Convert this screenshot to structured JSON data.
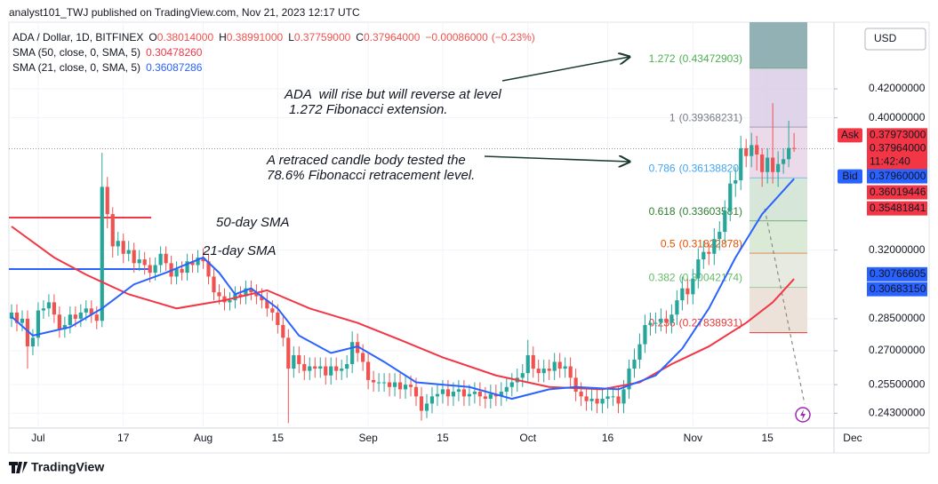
{
  "header": {
    "publisher": "analyst101_TWJ published on TradingView.com, Nov 21, 2023 12:17 UTC"
  },
  "footer": {
    "brand": "TradingView"
  },
  "chart_data": {
    "type": "candlestick",
    "symbol": "ADA / Dollar, 1D, BITFINEX",
    "currency": "USD",
    "ohlc_summary": [
      {
        "key": "O",
        "value": 0.38014,
        "label": "0.38014000"
      },
      {
        "key": "H",
        "value": 0.38991,
        "label": "0.38991000"
      },
      {
        "key": "L",
        "value": 0.37759,
        "label": "0.37759000"
      },
      {
        "key": "C",
        "value": 0.37964,
        "label": "0.37964000"
      }
    ],
    "change": {
      "value": -0.00086,
      "label": "−0.00086000"
    },
    "change_pct": {
      "value": -0.23,
      "label": "(−0.23%)"
    },
    "up_color": "#26a69a",
    "down_color": "#ef5350",
    "log_scale": true,
    "grid": true,
    "xlim": [
      -0.5,
      154.5
    ],
    "xticks": [
      {
        "value": 5,
        "label": "Jul"
      },
      {
        "value": 21,
        "label": "17"
      },
      {
        "value": 36,
        "label": "Aug"
      },
      {
        "value": 50,
        "label": "15"
      },
      {
        "value": 67,
        "label": "Sep"
      },
      {
        "value": 81,
        "label": "15"
      },
      {
        "value": 97,
        "label": "Oct"
      },
      {
        "value": 112,
        "label": "16"
      },
      {
        "value": 128,
        "label": "Nov"
      },
      {
        "value": 142,
        "label": "15"
      },
      {
        "value": 158,
        "label": "Dec"
      }
    ],
    "ylim": [
      0.237,
      0.47
    ],
    "yticks": [
      {
        "value": 0.42,
        "label": "0.42000000"
      },
      {
        "value": 0.4,
        "label": "0.40000000"
      },
      {
        "value": 0.32,
        "label": "0.32000000"
      },
      {
        "value": 0.285,
        "label": "0.28500000"
      },
      {
        "value": 0.27,
        "label": "0.27000000"
      },
      {
        "value": 0.255,
        "label": "0.25500000"
      },
      {
        "value": 0.243,
        "label": "0.24300000"
      }
    ],
    "x": [
      0,
      1,
      2,
      3,
      4,
      5,
      6,
      7,
      8,
      9,
      10,
      11,
      12,
      13,
      14,
      15,
      16,
      17,
      18,
      19,
      20,
      21,
      22,
      23,
      24,
      25,
      26,
      27,
      28,
      29,
      30,
      31,
      32,
      33,
      34,
      35,
      36,
      37,
      38,
      39,
      40,
      41,
      42,
      43,
      44,
      45,
      46,
      47,
      48,
      49,
      50,
      51,
      52,
      53,
      54,
      55,
      56,
      57,
      58,
      59,
      60,
      61,
      62,
      63,
      64,
      65,
      66,
      67,
      68,
      69,
      70,
      71,
      72,
      73,
      74,
      75,
      76,
      77,
      78,
      79,
      80,
      81,
      82,
      83,
      84,
      85,
      86,
      87,
      88,
      89,
      90,
      91,
      92,
      93,
      94,
      95,
      96,
      97,
      98,
      99,
      100,
      101,
      102,
      103,
      104,
      105,
      106,
      107,
      108,
      109,
      110,
      111,
      112,
      113,
      114,
      115,
      116,
      117,
      118,
      119,
      120,
      121,
      122,
      123,
      124,
      125,
      126,
      127,
      128,
      129,
      130,
      131,
      132,
      133,
      134,
      135,
      136,
      137,
      138,
      139,
      140,
      141,
      142,
      143,
      144,
      145,
      146,
      147
    ],
    "open": [
      0.285,
      0.288,
      0.283,
      0.285,
      0.272,
      0.276,
      0.289,
      0.29,
      0.293,
      0.287,
      0.28,
      0.282,
      0.287,
      0.285,
      0.288,
      0.29,
      0.287,
      0.284,
      0.356,
      0.34,
      0.322,
      0.325,
      0.318,
      0.32,
      0.313,
      0.315,
      0.312,
      0.308,
      0.312,
      0.318,
      0.313,
      0.306,
      0.31,
      0.308,
      0.314,
      0.312,
      0.316,
      0.314,
      0.306,
      0.298,
      0.296,
      0.293,
      0.294,
      0.297,
      0.296,
      0.3,
      0.298,
      0.296,
      0.294,
      0.29,
      0.288,
      0.282,
      0.276,
      0.262,
      0.268,
      0.264,
      0.261,
      0.263,
      0.262,
      0.263,
      0.259,
      0.263,
      0.261,
      0.262,
      0.264,
      0.274,
      0.269,
      0.265,
      0.257,
      0.256,
      0.256,
      0.256,
      0.254,
      0.256,
      0.253,
      0.255,
      0.254,
      0.25,
      0.244,
      0.247,
      0.25,
      0.251,
      0.253,
      0.25,
      0.252,
      0.253,
      0.25,
      0.251,
      0.252,
      0.25,
      0.249,
      0.251,
      0.25,
      0.252,
      0.254,
      0.256,
      0.258,
      0.26,
      0.268,
      0.262,
      0.26,
      0.262,
      0.261,
      0.265,
      0.262,
      0.263,
      0.258,
      0.252,
      0.25,
      0.248,
      0.249,
      0.247,
      0.249,
      0.25,
      0.25,
      0.247,
      0.253,
      0.262,
      0.266,
      0.273,
      0.282,
      0.283,
      0.283,
      0.285,
      0.283,
      0.287,
      0.294,
      0.3,
      0.297,
      0.305,
      0.315,
      0.319,
      0.318,
      0.326,
      0.33,
      0.342,
      0.358,
      0.36,
      0.38,
      0.375,
      0.382,
      0.376,
      0.365,
      0.374,
      0.365,
      0.37,
      0.373,
      0.38014
    ],
    "high": [
      0.292,
      0.292,
      0.289,
      0.289,
      0.28,
      0.293,
      0.294,
      0.297,
      0.297,
      0.291,
      0.286,
      0.291,
      0.291,
      0.292,
      0.294,
      0.294,
      0.291,
      0.377,
      0.362,
      0.344,
      0.33,
      0.329,
      0.325,
      0.324,
      0.32,
      0.319,
      0.316,
      0.316,
      0.322,
      0.322,
      0.317,
      0.314,
      0.314,
      0.318,
      0.318,
      0.32,
      0.321,
      0.318,
      0.31,
      0.302,
      0.3,
      0.298,
      0.301,
      0.301,
      0.304,
      0.304,
      0.302,
      0.3,
      0.298,
      0.294,
      0.292,
      0.286,
      0.28,
      0.272,
      0.272,
      0.268,
      0.267,
      0.267,
      0.267,
      0.267,
      0.267,
      0.267,
      0.266,
      0.268,
      0.279,
      0.278,
      0.273,
      0.269,
      0.261,
      0.26,
      0.26,
      0.26,
      0.26,
      0.26,
      0.259,
      0.259,
      0.258,
      0.254,
      0.251,
      0.254,
      0.255,
      0.257,
      0.257,
      0.256,
      0.257,
      0.257,
      0.255,
      0.256,
      0.256,
      0.254,
      0.255,
      0.255,
      0.256,
      0.258,
      0.26,
      0.262,
      0.264,
      0.275,
      0.272,
      0.266,
      0.266,
      0.266,
      0.269,
      0.269,
      0.267,
      0.267,
      0.262,
      0.256,
      0.254,
      0.253,
      0.253,
      0.253,
      0.254,
      0.254,
      0.254,
      0.257,
      0.266,
      0.271,
      0.278,
      0.287,
      0.288,
      0.288,
      0.29,
      0.289,
      0.292,
      0.299,
      0.306,
      0.305,
      0.31,
      0.321,
      0.325,
      0.324,
      0.332,
      0.336,
      0.348,
      0.365,
      0.368,
      0.388,
      0.386,
      0.39,
      0.388,
      0.38,
      0.38,
      0.41,
      0.378,
      0.38,
      0.398,
      0.38991
    ],
    "low": [
      0.281,
      0.279,
      0.279,
      0.262,
      0.268,
      0.272,
      0.285,
      0.286,
      0.283,
      0.276,
      0.276,
      0.278,
      0.281,
      0.281,
      0.284,
      0.283,
      0.28,
      0.281,
      0.332,
      0.316,
      0.317,
      0.313,
      0.314,
      0.308,
      0.309,
      0.307,
      0.303,
      0.304,
      0.308,
      0.309,
      0.302,
      0.302,
      0.304,
      0.304,
      0.308,
      0.308,
      0.31,
      0.302,
      0.294,
      0.292,
      0.289,
      0.289,
      0.29,
      0.292,
      0.292,
      0.294,
      0.292,
      0.29,
      0.286,
      0.284,
      0.278,
      0.272,
      0.239,
      0.258,
      0.26,
      0.257,
      0.257,
      0.258,
      0.258,
      0.255,
      0.255,
      0.257,
      0.257,
      0.258,
      0.26,
      0.265,
      0.261,
      0.253,
      0.252,
      0.252,
      0.252,
      0.25,
      0.25,
      0.249,
      0.249,
      0.25,
      0.246,
      0.24,
      0.241,
      0.243,
      0.246,
      0.247,
      0.246,
      0.246,
      0.248,
      0.246,
      0.246,
      0.247,
      0.246,
      0.245,
      0.245,
      0.246,
      0.246,
      0.248,
      0.25,
      0.252,
      0.254,
      0.256,
      0.258,
      0.256,
      0.256,
      0.257,
      0.257,
      0.258,
      0.258,
      0.254,
      0.248,
      0.246,
      0.244,
      0.244,
      0.243,
      0.243,
      0.245,
      0.246,
      0.243,
      0.243,
      0.249,
      0.258,
      0.262,
      0.269,
      0.277,
      0.278,
      0.279,
      0.278,
      0.278,
      0.282,
      0.289,
      0.292,
      0.292,
      0.3,
      0.31,
      0.312,
      0.312,
      0.32,
      0.324,
      0.336,
      0.35,
      0.354,
      0.368,
      0.368,
      0.366,
      0.356,
      0.358,
      0.358,
      0.356,
      0.364,
      0.368,
      0.37759
    ],
    "close": [
      0.288,
      0.283,
      0.285,
      0.272,
      0.276,
      0.289,
      0.29,
      0.293,
      0.287,
      0.28,
      0.282,
      0.287,
      0.285,
      0.288,
      0.29,
      0.287,
      0.284,
      0.356,
      0.34,
      0.322,
      0.325,
      0.318,
      0.32,
      0.313,
      0.315,
      0.312,
      0.308,
      0.312,
      0.318,
      0.313,
      0.306,
      0.31,
      0.308,
      0.314,
      0.312,
      0.316,
      0.314,
      0.306,
      0.298,
      0.296,
      0.293,
      0.294,
      0.297,
      0.296,
      0.3,
      0.298,
      0.296,
      0.294,
      0.29,
      0.288,
      0.282,
      0.276,
      0.262,
      0.268,
      0.264,
      0.261,
      0.263,
      0.262,
      0.263,
      0.259,
      0.263,
      0.261,
      0.262,
      0.264,
      0.274,
      0.269,
      0.265,
      0.257,
      0.256,
      0.256,
      0.256,
      0.254,
      0.256,
      0.253,
      0.255,
      0.254,
      0.25,
      0.244,
      0.247,
      0.25,
      0.251,
      0.253,
      0.25,
      0.252,
      0.253,
      0.25,
      0.251,
      0.252,
      0.25,
      0.249,
      0.251,
      0.25,
      0.252,
      0.254,
      0.256,
      0.258,
      0.26,
      0.268,
      0.262,
      0.26,
      0.262,
      0.261,
      0.265,
      0.262,
      0.263,
      0.258,
      0.252,
      0.25,
      0.248,
      0.249,
      0.247,
      0.249,
      0.25,
      0.25,
      0.247,
      0.253,
      0.262,
      0.266,
      0.273,
      0.282,
      0.283,
      0.283,
      0.285,
      0.283,
      0.287,
      0.294,
      0.3,
      0.297,
      0.305,
      0.315,
      0.319,
      0.318,
      0.326,
      0.33,
      0.342,
      0.358,
      0.36,
      0.38,
      0.375,
      0.382,
      0.376,
      0.365,
      0.374,
      0.365,
      0.37,
      0.373,
      0.38014,
      0.37964
    ],
    "series": [
      {
        "name": "SMA (50, close, 0, SMA, 5)",
        "color": "#f23645",
        "annotation": "50-day SMA",
        "last": {
          "value": 0.3047826,
          "label": "0.30478260"
        },
        "x": [
          0,
          8,
          14,
          22,
          31,
          40,
          48,
          56,
          65,
          73,
          81,
          91,
          101,
          111,
          118,
          124,
          131,
          138,
          143,
          147
        ],
        "values": [
          0.333,
          0.316,
          0.307,
          0.297,
          0.29,
          0.294,
          0.299,
          0.29,
          0.283,
          0.275,
          0.267,
          0.259,
          0.254,
          0.253,
          0.256,
          0.264,
          0.272,
          0.283,
          0.293,
          0.3047826
        ]
      },
      {
        "name": "SMA (21, close, 0, SMA, 5)",
        "color": "#2962ff",
        "annotation": "21-day SMA",
        "last": {
          "value": 0.36087286,
          "label": "0.36087286"
        },
        "x": [
          0,
          4,
          11,
          17,
          23,
          29,
          36,
          39,
          42,
          45,
          50,
          54,
          60,
          65,
          70,
          76,
          86,
          94,
          101,
          106,
          114,
          121,
          126,
          131,
          136,
          141,
          147
        ],
        "values": [
          0.286,
          0.277,
          0.281,
          0.29,
          0.302,
          0.308,
          0.316,
          0.308,
          0.297,
          0.3,
          0.29,
          0.277,
          0.269,
          0.272,
          0.265,
          0.256,
          0.254,
          0.249,
          0.253,
          0.254,
          0.253,
          0.259,
          0.271,
          0.29,
          0.316,
          0.34,
          0.36087286
        ]
      }
    ],
    "fib_levels": [
      {
        "ratio": 1.272,
        "value": 0.43472903,
        "label": "(0.43472903)",
        "color": "#4caf50",
        "band_color": "#7fa3a8"
      },
      {
        "ratio": 1,
        "value": 0.39368231,
        "label": "(0.39368231)",
        "color": "#787b86",
        "band_color": "#d9cde6"
      },
      {
        "ratio": 0.786,
        "value": 0.3613882,
        "label": "(0.36138820)",
        "color": "#42a5f5",
        "band_color": "#e8d4e6"
      },
      {
        "ratio": 0.618,
        "value": 0.33603581,
        "label": "(0.33603581)",
        "color": "#2e7d32",
        "band_color": "#cfe3d2"
      },
      {
        "ratio": 0.5,
        "value": 0.31822878,
        "label": "(0.31822878)",
        "color": "#e65100",
        "band_color": "#d4e6d0"
      },
      {
        "ratio": 0.382,
        "value": 0.30042174,
        "label": "(0.30042174)",
        "color": "#66bb6a",
        "band_color": "#e2e6dc"
      },
      {
        "ratio": 0.236,
        "value": 0.27838931,
        "label": "(0.27838931)",
        "color": "#e53935",
        "band_color": "#eaddd3"
      }
    ],
    "price_tags": [
      {
        "name": "Ask",
        "value": 0.37973,
        "label": "0.37973000",
        "color": "#f23645"
      },
      {
        "value": 0.37964,
        "label": "0.37964000",
        "color": "#f23645",
        "countdown": "11:42:40"
      },
      {
        "name": "Bid",
        "value": 0.3796,
        "label": "0.37960000",
        "color": "#2962ff"
      },
      {
        "value": 0.36019446,
        "label": "0.36019446",
        "color": "#f23645"
      },
      {
        "value": 0.35481841,
        "label": "0.35481841",
        "color": "#f23645"
      },
      {
        "value": 0.30766605,
        "label": "0.30766605",
        "color": "#2962ff"
      },
      {
        "value": 0.3068315,
        "label": "0.30683150",
        "color": "#2962ff"
      }
    ],
    "annotations": [
      "ADA  will rise but will reverse at level",
      "1.272 Fibonacci extension.",
      "A retraced candle body tested the",
      "78.6% Fibonacci retracement level."
    ]
  }
}
